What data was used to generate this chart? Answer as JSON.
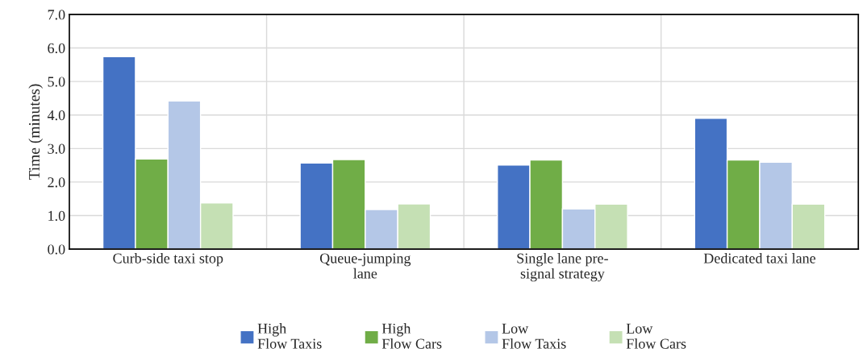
{
  "chart_data": {
    "type": "bar",
    "ylabel": "Time (minutes)",
    "categories": [
      "Curb-side taxi stop",
      "Queue-jumping\nlane",
      "Single lane pre-\nsignal strategy",
      "Dedicated taxi lane"
    ],
    "series": [
      {
        "name": "High\nFlow Taxis",
        "color": "#4472c4",
        "values": [
          5.74,
          2.57,
          2.51,
          3.9
        ]
      },
      {
        "name": "High\nFlow Cars",
        "color": "#70ad47",
        "values": [
          2.69,
          2.67,
          2.66,
          2.66
        ]
      },
      {
        "name": "Low\nFlow Taxis",
        "color": "#b4c7e7",
        "values": [
          4.42,
          1.18,
          1.2,
          2.59
        ]
      },
      {
        "name": "Low\nFlow Cars",
        "color": "#c5e0b4",
        "values": [
          1.38,
          1.35,
          1.34,
          1.34
        ]
      }
    ],
    "ylim": [
      0,
      7
    ],
    "yticks": [
      {
        "value": 0,
        "label": "0.0"
      },
      {
        "value": 1,
        "label": "1.0"
      },
      {
        "value": 2,
        "label": "2.0"
      },
      {
        "value": 3,
        "label": "3.0"
      },
      {
        "value": 4,
        "label": "4.0"
      },
      {
        "value": 5,
        "label": "5.0"
      },
      {
        "value": 6,
        "label": "6.0"
      },
      {
        "value": 7,
        "label": "7.0"
      }
    ],
    "grid": true,
    "legend": "bottom"
  }
}
